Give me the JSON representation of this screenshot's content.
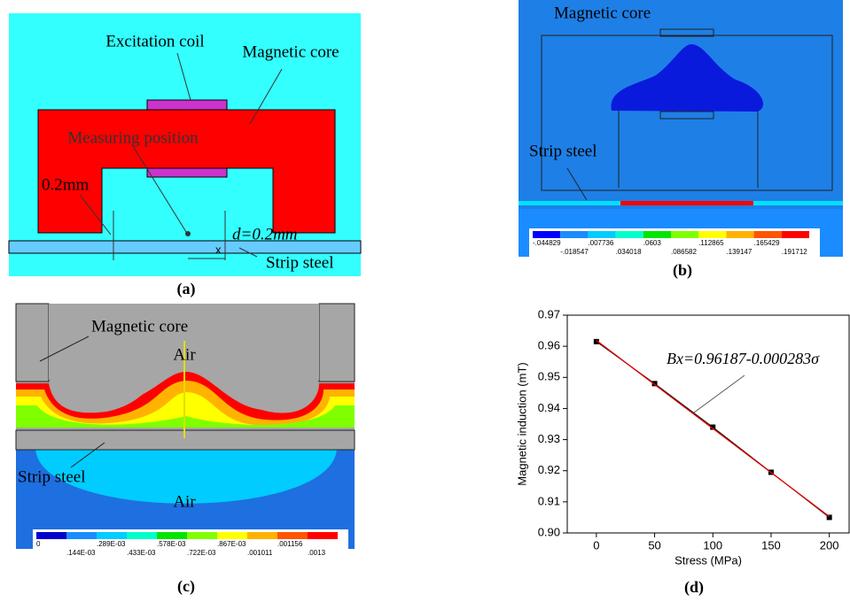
{
  "figure_a": {
    "label": "(a)",
    "excitation_coil": "Excitation coil",
    "magnetic_core": "Magnetic core",
    "measuring_position": "Measuring position",
    "gap": "0.2mm",
    "distance": "d=0.2mm",
    "strip_steel": "Strip steel",
    "axis": "x"
  },
  "figure_b": {
    "label": "(b)",
    "magnetic_core": "Magnetic core",
    "strip_steel": "Strip steel",
    "colorbar": {
      "colors": [
        "#0000ff",
        "#1a8cff",
        "#00ccff",
        "#00ffcc",
        "#00e600",
        "#80ff00",
        "#ffff00",
        "#ffb300",
        "#ff5500",
        "#ff0000"
      ],
      "labels": [
        "-.044829",
        "-.018547",
        ".007736",
        ".034018",
        ".0603",
        ".086582",
        ".112865",
        ".139147",
        ".165429",
        ".191712"
      ]
    }
  },
  "figure_c": {
    "label": "(c)",
    "magnetic_core": "Magnetic core",
    "air_top": "Air",
    "strip_steel": "Strip steel",
    "air_bottom": "Air",
    "colorbar": {
      "colors": [
        "#0000cc",
        "#1a8cff",
        "#00ccff",
        "#00ffcc",
        "#00e600",
        "#80ff00",
        "#ffff00",
        "#ffb300",
        "#ff5500",
        "#ff0000"
      ],
      "labels": [
        "0",
        ".144E-03",
        ".289E-03",
        ".433E-03",
        ".578E-03",
        ".722E-03",
        ".867E-03",
        ".001011",
        ".001156",
        ".0013"
      ]
    }
  },
  "chart_data": {
    "type": "scatter",
    "label": "(d)",
    "x_label": "Stress (MPa)",
    "y_label": "Magnetic induction (mT)",
    "annotation": "Bx=0.96187-0.000283σ",
    "x": [
      0,
      50,
      100,
      150,
      200
    ],
    "series": [
      {
        "color": "#000000",
        "values": [
          0.9615,
          0.948,
          0.934,
          0.9195,
          0.905
        ]
      }
    ],
    "fit": {
      "color": "#e00000",
      "x": [
        0,
        200
      ],
      "values": [
        0.96187,
        0.90527
      ]
    },
    "xlim": [
      -25,
      217
    ],
    "ylim": [
      0.9,
      0.97
    ],
    "xticks": [
      0,
      50,
      100,
      150,
      200
    ],
    "yticks": [
      {
        "value": 0.9,
        "label": "0.90"
      },
      0.91,
      0.92,
      0.93,
      0.94,
      0.95,
      0.96,
      0.97
    ]
  }
}
